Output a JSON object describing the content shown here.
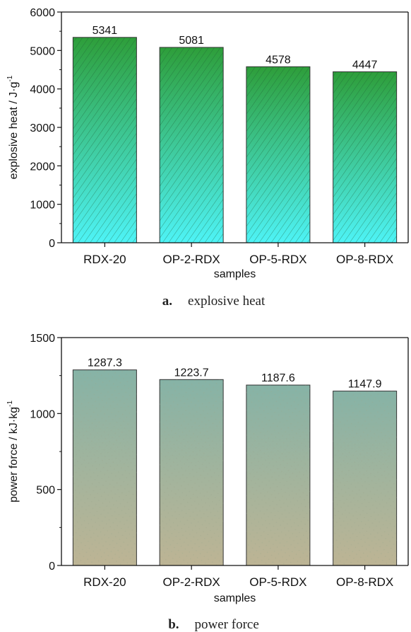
{
  "chart_data": [
    {
      "type": "bar",
      "categories": [
        "RDX-20",
        "OP-2-RDX",
        "OP-5-RDX",
        "OP-8-RDX"
      ],
      "values": [
        5341,
        5081,
        4578,
        4447
      ],
      "value_labels": [
        "5341",
        "5081",
        "4578",
        "4447"
      ],
      "xlabel": "samples",
      "ylabel": "explosive heat / J·g",
      "ylabel_sup": "-1",
      "ylim": [
        0,
        6000
      ],
      "yticks": [
        "0",
        "1000",
        "2000",
        "3000",
        "4000",
        "5000",
        "6000"
      ],
      "ytick_values": [
        0,
        1000,
        2000,
        3000,
        4000,
        5000,
        6000
      ],
      "caption_letter": "a.",
      "caption_text": "explosive heat",
      "colors": {
        "top": "#2e9e3a",
        "bottom": "#4ef3f6",
        "hatch": "#1d5a33"
      }
    },
    {
      "type": "bar",
      "categories": [
        "RDX-20",
        "OP-2-RDX",
        "OP-5-RDX",
        "OP-8-RDX"
      ],
      "values": [
        1287.3,
        1223.7,
        1187.6,
        1147.9
      ],
      "value_labels": [
        "1287.3",
        "1223.7",
        "1187.6",
        "1147.9"
      ],
      "xlabel": "samples",
      "ylabel": "power force / kJ·kg",
      "ylabel_sup": "-1",
      "ylim": [
        0,
        1500
      ],
      "yticks": [
        "0",
        "500",
        "1000",
        "1500"
      ],
      "ytick_values": [
        0,
        500,
        1000,
        1500
      ],
      "caption_letter": "b.",
      "caption_text": "power force",
      "colors": {
        "top": "#86b3a6",
        "bottom": "#bdb494",
        "hatch": "#9aa58c"
      }
    }
  ]
}
